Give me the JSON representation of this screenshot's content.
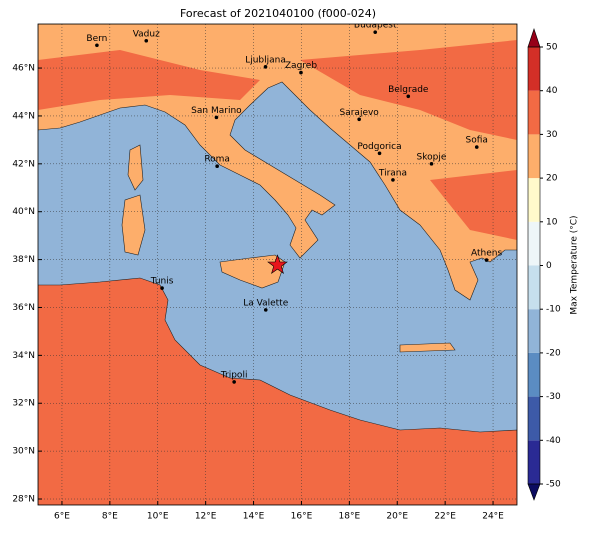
{
  "title": "Forecast of 2021040100 (f000-024)",
  "map": {
    "lonlim": [
      5,
      25
    ],
    "latlim": [
      27.75,
      47.84
    ],
    "xticks": [
      {
        "value": 6,
        "label": "6°E"
      },
      {
        "value": 8,
        "label": "8°E"
      },
      {
        "value": 10,
        "label": "10°E"
      },
      {
        "value": 12,
        "label": "12°E"
      },
      {
        "value": 14,
        "label": "14°E"
      },
      {
        "value": 16,
        "label": "16°E"
      },
      {
        "value": 18,
        "label": "18°E"
      },
      {
        "value": 20,
        "label": "20°E"
      },
      {
        "value": 22,
        "label": "22°E"
      },
      {
        "value": 24,
        "label": "24°E"
      }
    ],
    "yticks": [
      {
        "value": 28,
        "label": "28°N"
      },
      {
        "value": 30,
        "label": "30°N"
      },
      {
        "value": 32,
        "label": "32°N"
      },
      {
        "value": 34,
        "label": "34°N"
      },
      {
        "value": 36,
        "label": "36°N"
      },
      {
        "value": 38,
        "label": "38°N"
      },
      {
        "value": 40,
        "label": "40°N"
      },
      {
        "value": 42,
        "label": "42°N"
      },
      {
        "value": 44,
        "label": "44°N"
      },
      {
        "value": 46,
        "label": "46°N"
      }
    ],
    "grid": true,
    "cities": [
      {
        "name": "Bern",
        "lon": 7.46,
        "lat": 46.95
      },
      {
        "name": "Vaduz",
        "lon": 9.52,
        "lat": 47.14
      },
      {
        "name": "Budapest",
        "lon": 19.08,
        "lat": 47.5
      },
      {
        "name": "Ljubljana",
        "lon": 14.5,
        "lat": 46.05
      },
      {
        "name": "Zagreb",
        "lon": 15.98,
        "lat": 45.81
      },
      {
        "name": "Belgrade",
        "lon": 20.46,
        "lat": 44.82
      },
      {
        "name": "San Marino",
        "lon": 12.45,
        "lat": 43.94
      },
      {
        "name": "Sarajevo",
        "lon": 18.41,
        "lat": 43.86
      },
      {
        "name": "Sofia",
        "lon": 23.32,
        "lat": 42.7
      },
      {
        "name": "Podgorica",
        "lon": 19.26,
        "lat": 42.44
      },
      {
        "name": "Skopje",
        "lon": 21.43,
        "lat": 42.0
      },
      {
        "name": "Roma",
        "lon": 12.48,
        "lat": 41.9
      },
      {
        "name": "Tirana",
        "lon": 19.82,
        "lat": 41.33
      },
      {
        "name": "Athens",
        "lon": 23.73,
        "lat": 37.98
      },
      {
        "name": "Tunis",
        "lon": 10.18,
        "lat": 36.81
      },
      {
        "name": "La Valette",
        "lon": 14.51,
        "lat": 35.9
      },
      {
        "name": "Tripoli",
        "lon": 13.19,
        "lat": 32.89
      }
    ],
    "star": {
      "lon": 15.0,
      "lat": 37.77,
      "color": "#e8141c"
    }
  },
  "colorbar": {
    "label": "Max Temperature (°C)",
    "ticks": [
      -50,
      -40,
      -30,
      -20,
      -10,
      0,
      10,
      20,
      30,
      40,
      50
    ],
    "colors": [
      "#2a2a94",
      "#3d5aa8",
      "#5b8cc2",
      "#91b4d8",
      "#c6dfed",
      "#eef6f8",
      "#fffacb",
      "#fdae6b",
      "#f26a44",
      "#d32f27"
    ],
    "under": "#0c0c60",
    "over": "#960018"
  }
}
